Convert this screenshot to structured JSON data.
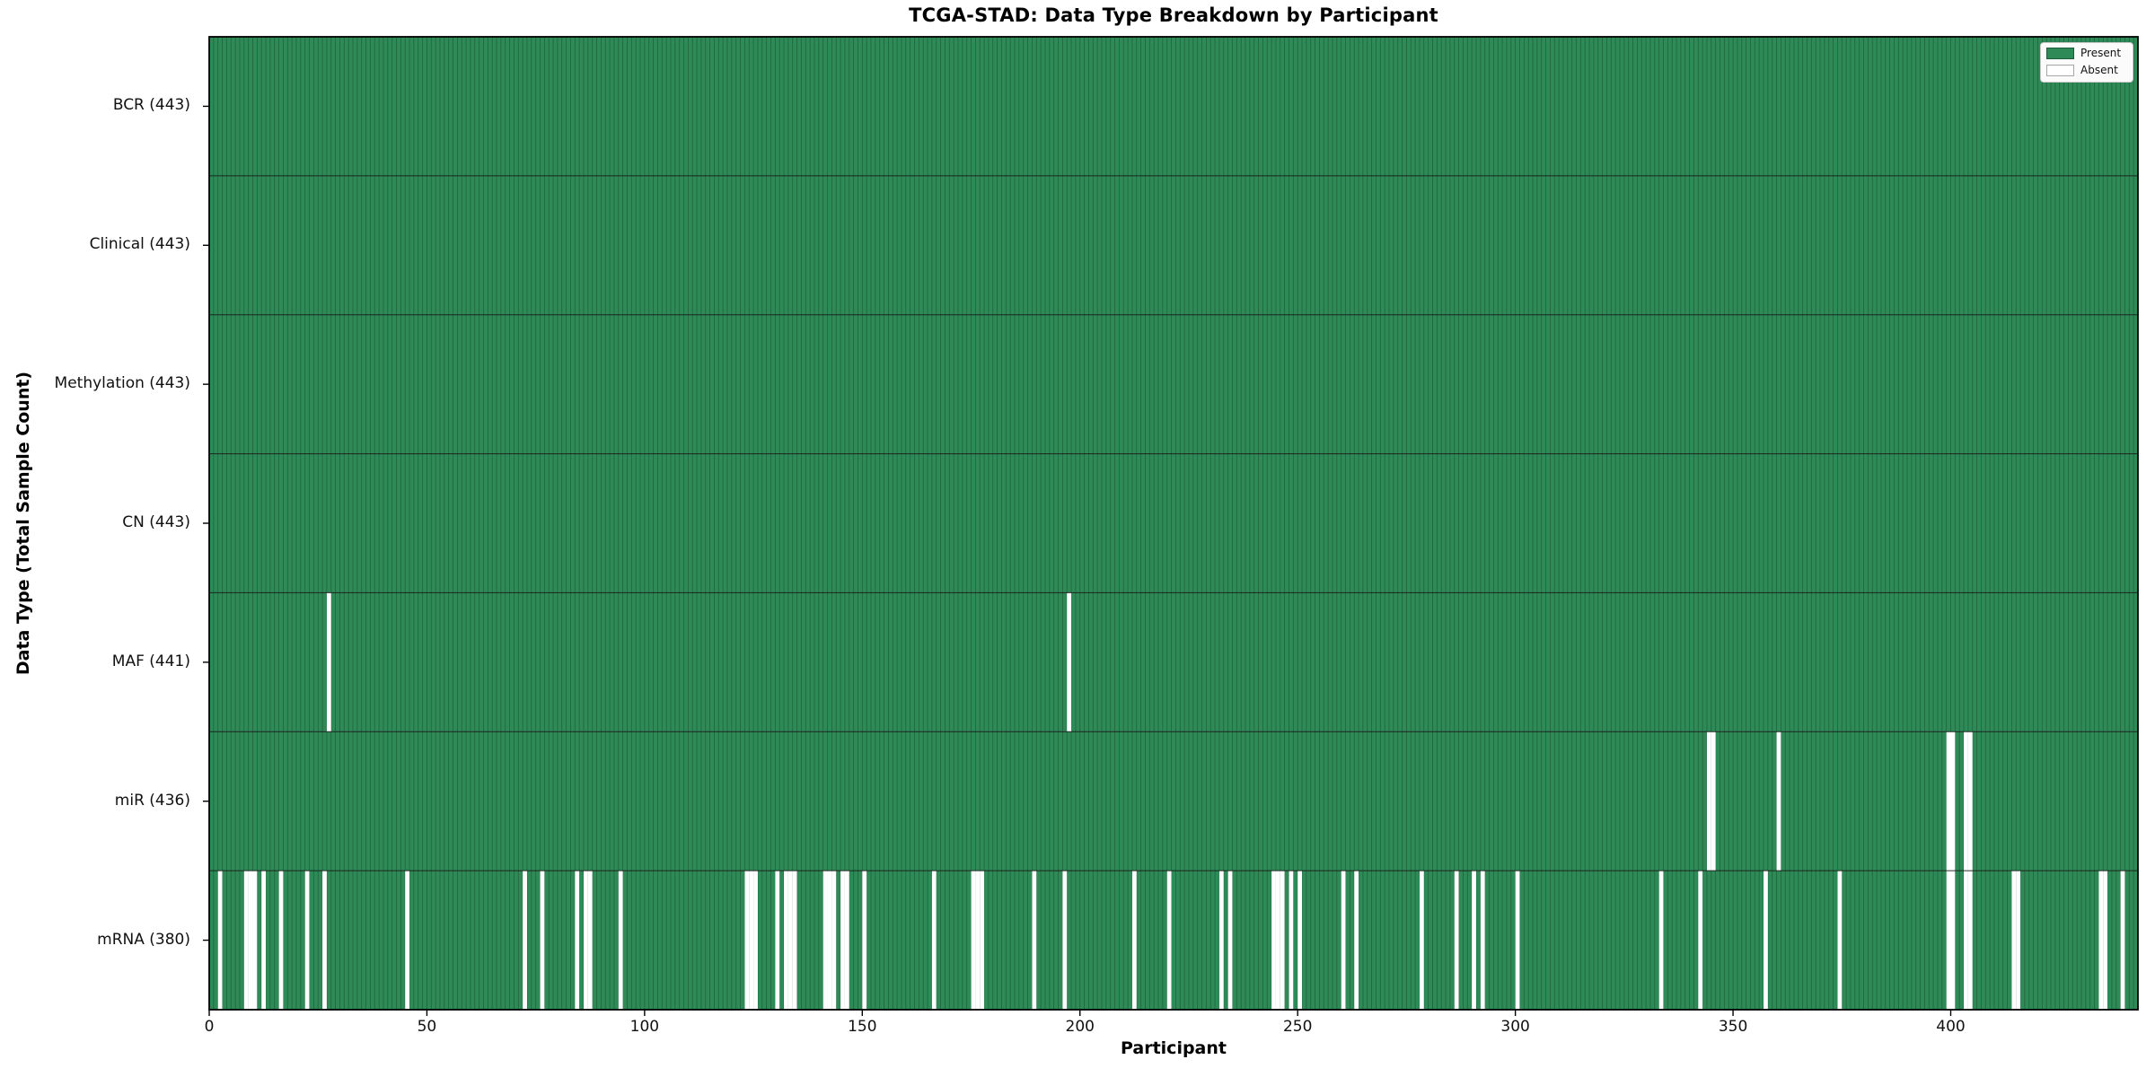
{
  "chart": {
    "title": "TCGA-STAD: Data Type Breakdown by Participant",
    "xlabel": "Participant",
    "ylabel": "Data Type (Total Sample Count)"
  },
  "legend": {
    "items": [
      {
        "label": "Present",
        "color": "#2e8b57"
      },
      {
        "label": "Absent",
        "color": "#ffffff"
      }
    ]
  },
  "chart_data": {
    "type": "heatmap",
    "title": "TCGA-STAD: Data Type Breakdown by Participant",
    "xlabel": "Participant",
    "ylabel": "Data Type (Total Sample Count)",
    "legend_position": "upper right",
    "grid": false,
    "n_participants": 443,
    "xlim": [
      0,
      443
    ],
    "x_ticks": [
      0,
      50,
      100,
      150,
      200,
      250,
      300,
      350,
      400
    ],
    "y_tick_labels": [
      "BCR (443)",
      "Clinical (443)",
      "Methylation (443)",
      "CN (443)",
      "MAF (441)",
      "miR (436)",
      "mRNA (380)"
    ],
    "colors": {
      "present": "#2e8b57",
      "absent": "#ffffff",
      "bar_edge": "#1c5a37",
      "row_divider": "#1a1a1a",
      "spine": "#000000"
    },
    "rows": [
      {
        "label": "BCR",
        "total": 443,
        "absent": []
      },
      {
        "label": "Clinical",
        "total": 443,
        "absent": []
      },
      {
        "label": "Methylation",
        "total": 443,
        "absent": []
      },
      {
        "label": "CN",
        "total": 443,
        "absent": []
      },
      {
        "label": "MAF",
        "total": 441,
        "absent": [
          27,
          197
        ]
      },
      {
        "label": "miR",
        "total": 436,
        "absent": [
          344,
          345,
          360,
          399,
          400,
          403,
          404
        ]
      },
      {
        "label": "mRNA",
        "total": 380,
        "absent": [
          2,
          8,
          9,
          10,
          12,
          16,
          22,
          26,
          45,
          72,
          76,
          84,
          86,
          87,
          94,
          123,
          124,
          125,
          130,
          132,
          133,
          134,
          141,
          142,
          143,
          145,
          146,
          150,
          166,
          175,
          176,
          177,
          189,
          196,
          212,
          220,
          232,
          234,
          244,
          245,
          246,
          248,
          250,
          260,
          263,
          278,
          286,
          290,
          292,
          300,
          333,
          342,
          357,
          374,
          399,
          400,
          403,
          404,
          414,
          415,
          434,
          435,
          439
        ]
      }
    ]
  }
}
